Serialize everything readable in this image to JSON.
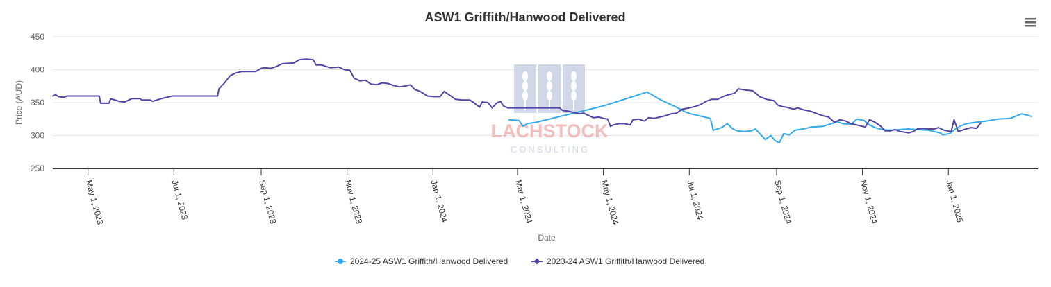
{
  "chart_data": {
    "type": "line",
    "title": "ASW1 Griffith/Hanwood Delivered",
    "xlabel": "Date",
    "ylabel": "Price (AUD)",
    "ylim": [
      250,
      450
    ],
    "y_ticks": [
      450,
      400,
      350,
      300,
      250
    ],
    "x_ticks": [
      "May 1, 2023",
      "Jul 1, 2023",
      "Sep 1, 2023",
      "Nov 1, 2023",
      "Jan 1, 2024",
      "Mar 1, 2024",
      "May 1, 2024",
      "Jul 1, 2024",
      "Sep 1, 2024",
      "Nov 1, 2024",
      "Jan 1, 2025"
    ],
    "xlim": [
      "2023-04-06",
      "2025-03-06"
    ],
    "grid": true,
    "legend_position": "bottom-center",
    "series": [
      {
        "name": "2024-25 ASW1 Griffith/Hanwood Delivered",
        "color": "#33aaee",
        "points": [
          [
            "2024-02-24",
            324
          ],
          [
            "2024-03-02",
            323
          ],
          [
            "2024-03-05",
            314
          ],
          [
            "2024-03-08",
            318
          ],
          [
            "2024-03-14",
            320
          ],
          [
            "2024-05-01",
            345
          ],
          [
            "2024-06-01",
            366
          ],
          [
            "2024-06-10",
            355
          ],
          [
            "2024-06-20",
            345
          ],
          [
            "2024-06-28",
            336
          ],
          [
            "2024-07-02",
            333
          ],
          [
            "2024-07-16",
            326
          ],
          [
            "2024-07-18",
            308
          ],
          [
            "2024-07-24",
            312
          ],
          [
            "2024-07-28",
            318
          ],
          [
            "2024-08-01",
            310
          ],
          [
            "2024-08-04",
            307
          ],
          [
            "2024-08-09",
            306
          ],
          [
            "2024-08-14",
            307
          ],
          [
            "2024-08-17",
            310
          ],
          [
            "2024-08-20",
            303
          ],
          [
            "2024-08-24",
            294
          ],
          [
            "2024-08-28",
            300
          ],
          [
            "2024-08-31",
            292
          ],
          [
            "2024-09-03",
            289
          ],
          [
            "2024-09-06",
            303
          ],
          [
            "2024-09-10",
            301
          ],
          [
            "2024-09-14",
            308
          ],
          [
            "2024-09-20",
            310
          ],
          [
            "2024-09-26",
            313
          ],
          [
            "2024-10-04",
            314
          ],
          [
            "2024-10-10",
            318
          ],
          [
            "2024-10-14",
            321
          ],
          [
            "2024-10-18",
            318
          ],
          [
            "2024-10-24",
            317
          ],
          [
            "2024-10-28",
            325
          ],
          [
            "2024-11-02",
            323
          ],
          [
            "2024-11-06",
            316
          ],
          [
            "2024-11-10",
            312
          ],
          [
            "2024-11-15",
            309
          ],
          [
            "2024-11-20",
            308
          ],
          [
            "2024-11-28",
            309
          ],
          [
            "2024-12-03",
            310
          ],
          [
            "2024-12-10",
            309
          ],
          [
            "2024-12-18",
            308
          ],
          [
            "2024-12-26",
            304
          ],
          [
            "2024-12-28",
            301
          ],
          [
            "2025-01-02",
            303
          ],
          [
            "2025-01-06",
            310
          ],
          [
            "2025-01-10",
            315
          ],
          [
            "2025-01-14",
            318
          ],
          [
            "2025-01-20",
            320
          ],
          [
            "2025-01-28",
            322
          ],
          [
            "2025-02-05",
            325
          ],
          [
            "2025-02-14",
            326
          ],
          [
            "2025-02-22",
            333
          ],
          [
            "2025-02-26",
            331
          ],
          [
            "2025-03-01",
            329
          ]
        ]
      },
      {
        "name": "2023-24 ASW1 Griffith/Hanwood Delivered",
        "color": "#5044aa",
        "points": [
          [
            "2023-04-06",
            360
          ],
          [
            "2023-04-08",
            362
          ],
          [
            "2023-04-10",
            359
          ],
          [
            "2023-04-14",
            358
          ],
          [
            "2023-04-16",
            360
          ],
          [
            "2023-05-09",
            360
          ],
          [
            "2023-05-10",
            349
          ],
          [
            "2023-05-16",
            349
          ],
          [
            "2023-05-17",
            356
          ],
          [
            "2023-05-23",
            352
          ],
          [
            "2023-05-27",
            351
          ],
          [
            "2023-06-01",
            356
          ],
          [
            "2023-06-07",
            356
          ],
          [
            "2023-06-08",
            354
          ],
          [
            "2023-06-14",
            354
          ],
          [
            "2023-06-16",
            352
          ],
          [
            "2023-06-22",
            356
          ],
          [
            "2023-06-26",
            358
          ],
          [
            "2023-06-30",
            360
          ],
          [
            "2023-07-01",
            360
          ],
          [
            "2023-08-01",
            360
          ],
          [
            "2023-08-02",
            371
          ],
          [
            "2023-08-06",
            380
          ],
          [
            "2023-08-10",
            391
          ],
          [
            "2023-08-14",
            395
          ],
          [
            "2023-08-18",
            397
          ],
          [
            "2023-08-28",
            397
          ],
          [
            "2023-09-01",
            402
          ],
          [
            "2023-09-03",
            403
          ],
          [
            "2023-09-08",
            402
          ],
          [
            "2023-09-12",
            405
          ],
          [
            "2023-09-16",
            409
          ],
          [
            "2023-09-24",
            410
          ],
          [
            "2023-09-28",
            415
          ],
          [
            "2023-10-03",
            416
          ],
          [
            "2023-10-08",
            415
          ],
          [
            "2023-10-10",
            407
          ],
          [
            "2023-10-14",
            407
          ],
          [
            "2023-10-20",
            403
          ],
          [
            "2023-10-26",
            404
          ],
          [
            "2023-10-30",
            400
          ],
          [
            "2023-11-03",
            399
          ],
          [
            "2023-11-06",
            387
          ],
          [
            "2023-11-10",
            383
          ],
          [
            "2023-11-14",
            384
          ],
          [
            "2023-11-18",
            378
          ],
          [
            "2023-11-22",
            377
          ],
          [
            "2023-11-26",
            380
          ],
          [
            "2023-11-30",
            379
          ],
          [
            "2023-12-04",
            376
          ],
          [
            "2023-12-08",
            374
          ],
          [
            "2023-12-12",
            375
          ],
          [
            "2023-12-16",
            377
          ],
          [
            "2023-12-19",
            370
          ],
          [
            "2023-12-23",
            367
          ],
          [
            "2023-12-28",
            360
          ],
          [
            "2024-01-02",
            359
          ],
          [
            "2024-01-06",
            359
          ],
          [
            "2024-01-09",
            367
          ],
          [
            "2024-01-13",
            361
          ],
          [
            "2024-01-17",
            355
          ],
          [
            "2024-01-22",
            354
          ],
          [
            "2024-01-27",
            354
          ],
          [
            "2024-01-30",
            350
          ],
          [
            "2024-02-03",
            343
          ],
          [
            "2024-02-05",
            351
          ],
          [
            "2024-02-09",
            350
          ],
          [
            "2024-02-12",
            342
          ],
          [
            "2024-02-15",
            349
          ],
          [
            "2024-02-18",
            352
          ],
          [
            "2024-02-20",
            345
          ],
          [
            "2024-02-23",
            342
          ],
          [
            "2024-02-28",
            342
          ],
          [
            "2024-03-31",
            342
          ],
          [
            "2024-04-02",
            338
          ],
          [
            "2024-04-06",
            337
          ],
          [
            "2024-04-10",
            335
          ],
          [
            "2024-04-14",
            333
          ],
          [
            "2024-04-17",
            334
          ],
          [
            "2024-04-20",
            331
          ],
          [
            "2024-04-24",
            327
          ],
          [
            "2024-04-28",
            328
          ],
          [
            "2024-05-01",
            326
          ],
          [
            "2024-05-04",
            325
          ],
          [
            "2024-05-06",
            314
          ],
          [
            "2024-05-08",
            316
          ],
          [
            "2024-05-12",
            318
          ],
          [
            "2024-05-16",
            318
          ],
          [
            "2024-05-20",
            316
          ],
          [
            "2024-05-22",
            324
          ],
          [
            "2024-05-26",
            325
          ],
          [
            "2024-05-30",
            322
          ],
          [
            "2024-06-02",
            327
          ],
          [
            "2024-06-06",
            326
          ],
          [
            "2024-06-10",
            328
          ],
          [
            "2024-06-14",
            330
          ],
          [
            "2024-06-18",
            333
          ],
          [
            "2024-06-22",
            334
          ],
          [
            "2024-06-26",
            340
          ],
          [
            "2024-07-01",
            342
          ],
          [
            "2024-07-05",
            344
          ],
          [
            "2024-07-09",
            347
          ],
          [
            "2024-07-13",
            352
          ],
          [
            "2024-07-17",
            355
          ],
          [
            "2024-07-21",
            355
          ],
          [
            "2024-07-26",
            360
          ],
          [
            "2024-07-29",
            362
          ],
          [
            "2024-08-02",
            364
          ],
          [
            "2024-08-05",
            371
          ],
          [
            "2024-08-10",
            369
          ],
          [
            "2024-08-15",
            368
          ],
          [
            "2024-08-20",
            359
          ],
          [
            "2024-08-25",
            355
          ],
          [
            "2024-08-30",
            353
          ],
          [
            "2024-09-02",
            346
          ],
          [
            "2024-09-05",
            344
          ],
          [
            "2024-09-08",
            343
          ],
          [
            "2024-09-13",
            340
          ],
          [
            "2024-09-16",
            342
          ],
          [
            "2024-09-20",
            339
          ],
          [
            "2024-09-25",
            337
          ],
          [
            "2024-09-30",
            333
          ],
          [
            "2024-10-04",
            330
          ],
          [
            "2024-10-08",
            328
          ],
          [
            "2024-10-12",
            320
          ],
          [
            "2024-10-16",
            324
          ],
          [
            "2024-10-20",
            322
          ],
          [
            "2024-10-24",
            318
          ],
          [
            "2024-10-30",
            315
          ],
          [
            "2024-11-03",
            313
          ],
          [
            "2024-11-06",
            324
          ],
          [
            "2024-11-10",
            320
          ],
          [
            "2024-11-14",
            314
          ],
          [
            "2024-11-17",
            307
          ],
          [
            "2024-11-21",
            307
          ],
          [
            "2024-11-24",
            309
          ],
          [
            "2024-11-28",
            306
          ],
          [
            "2024-12-04",
            304
          ],
          [
            "2024-12-07",
            306
          ],
          [
            "2024-12-10",
            310
          ],
          [
            "2024-12-14",
            311
          ],
          [
            "2024-12-18",
            310
          ],
          [
            "2024-12-22",
            310
          ],
          [
            "2024-12-25",
            312
          ],
          [
            "2024-12-29",
            308
          ],
          [
            "2025-01-03",
            306
          ],
          [
            "2025-01-05",
            324
          ],
          [
            "2025-01-08",
            306
          ],
          [
            "2025-01-12",
            309
          ],
          [
            "2025-01-17",
            312
          ],
          [
            "2025-01-21",
            311
          ],
          [
            "2025-01-24",
            319
          ]
        ]
      }
    ]
  },
  "watermark": {
    "text": "LACHSTOCK",
    "subtext": "CONSULTING"
  },
  "menu": {
    "icon": "hamburger-menu-icon"
  }
}
